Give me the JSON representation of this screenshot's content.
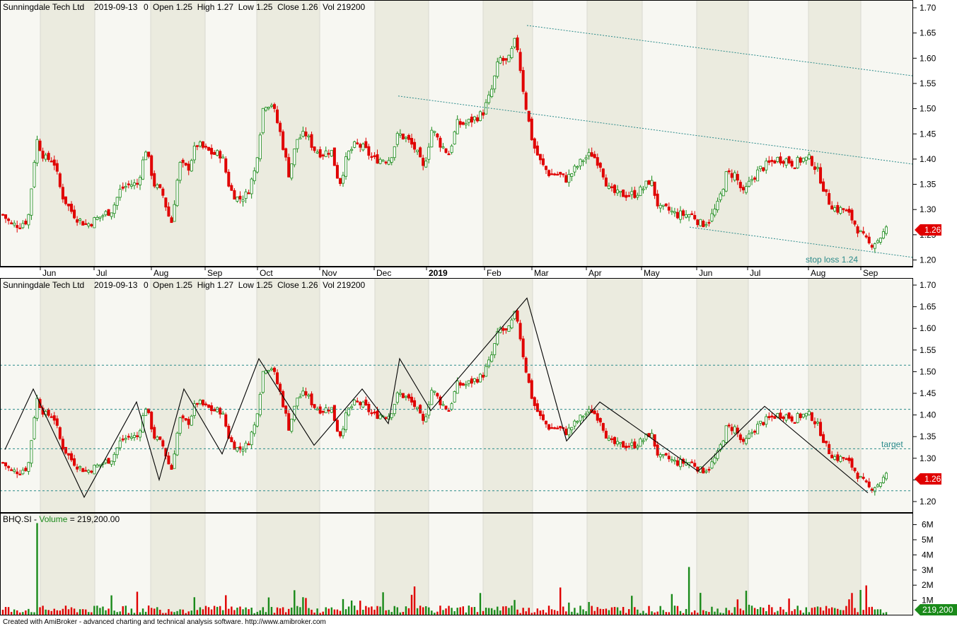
{
  "header": {
    "symbol": "Sunningdale Tech Ltd",
    "date": "2019-09-13",
    "zero": "0",
    "ohlcv": "Open 1.25  High 1.27  Low 1.25  Close 1.26  Vol 219200"
  },
  "volume_header": {
    "ticker": "BHQ.SI",
    "dash": " - ",
    "label": "Volume",
    "value": " = 219,200.00"
  },
  "price_badge": "1.26",
  "volume_badge": "219,200",
  "annotations": {
    "stop_loss": "stop loss 1.24",
    "target": "target"
  },
  "footer": "Created with AmiBroker - advanced charting and technical analysis software. http://www.amibroker.com",
  "colors": {
    "up": "#1a8a1a",
    "down": "#e00000",
    "guide": "#2a8a8a",
    "band_light": "#f7f7f2",
    "band_dark": "#ebebdf"
  },
  "chart_data": [
    {
      "type": "candlestick",
      "panel": "price",
      "y_ticks": [
        "1.70",
        "1.65",
        "1.60",
        "1.55",
        "1.50",
        "1.45",
        "1.40",
        "1.35",
        "1.30",
        "1.25",
        "1.20"
      ],
      "ylim": [
        1.19,
        1.715
      ],
      "x_ticks": [
        "Jun",
        "Jul",
        "Aug",
        "Sep",
        "Oct",
        "Nov",
        "Dec",
        "2019",
        "Feb",
        "Mar",
        "Apr",
        "May",
        "Jun",
        "Jul",
        "Aug",
        "Sep"
      ],
      "closes": [
        1.29,
        1.27,
        1.27,
        1.28,
        1.44,
        1.4,
        1.4,
        1.33,
        1.3,
        1.28,
        1.27,
        1.28,
        1.29,
        1.3,
        1.34,
        1.35,
        1.35,
        1.42,
        1.35,
        1.33,
        1.27,
        1.39,
        1.38,
        1.43,
        1.42,
        1.41,
        1.41,
        1.34,
        1.32,
        1.33,
        1.38,
        1.51,
        1.51,
        1.45,
        1.37,
        1.44,
        1.45,
        1.42,
        1.41,
        1.42,
        1.35,
        1.41,
        1.43,
        1.42,
        1.4,
        1.4,
        1.4,
        1.45,
        1.44,
        1.42,
        1.38,
        1.46,
        1.43,
        1.41,
        1.47,
        1.47,
        1.48,
        1.49,
        1.53,
        1.6,
        1.59,
        1.64,
        1.52,
        1.43,
        1.39,
        1.37,
        1.37,
        1.36,
        1.38,
        1.4,
        1.41,
        1.39,
        1.34,
        1.33,
        1.33,
        1.33,
        1.34,
        1.36,
        1.3,
        1.3,
        1.29,
        1.29,
        1.29,
        1.27,
        1.28,
        1.31,
        1.37,
        1.37,
        1.33,
        1.36,
        1.38,
        1.39,
        1.4,
        1.4,
        1.39,
        1.4,
        1.4,
        1.37,
        1.32,
        1.3,
        1.3,
        1.28,
        1.25,
        1.23,
        1.24,
        1.26
      ],
      "trend_lines": [
        {
          "from": [
            "2019-02-25",
            1.665
          ],
          "to": [
            "2019-09-30",
            1.565
          ]
        },
        {
          "from": [
            "2018-12-05",
            1.525
          ],
          "to": [
            "2019-09-30",
            1.39
          ]
        },
        {
          "from": [
            "2019-05-28",
            1.265
          ],
          "to": [
            "2019-09-30",
            1.205
          ]
        }
      ]
    },
    {
      "type": "candlestick",
      "panel": "zigzag",
      "y_ticks": [
        "1.70",
        "1.65",
        "1.60",
        "1.55",
        "1.50",
        "1.45",
        "1.40",
        "1.35",
        "1.30",
        "1.25",
        "1.20"
      ],
      "ylim": [
        1.19,
        1.715
      ],
      "zigzag": [
        1.32,
        1.46,
        1.21,
        1.43,
        1.25,
        1.46,
        1.31,
        1.53,
        1.33,
        1.46,
        1.38,
        1.53,
        1.41,
        1.67,
        1.34,
        1.43,
        1.27,
        1.42,
        1.22
      ],
      "horizontal_levels": [
        1.515,
        1.413,
        1.322,
        1.225
      ]
    },
    {
      "type": "bar",
      "panel": "volume",
      "y_ticks": [
        "6M",
        "5M",
        "4M",
        "3M",
        "2M",
        "1M"
      ],
      "ylim": [
        0,
        6.6
      ],
      "unit": "M",
      "highlights": [
        {
          "value": 6.1,
          "color": "green"
        },
        {
          "value": 3.2,
          "color": "red"
        }
      ],
      "last": 0.2192
    }
  ]
}
